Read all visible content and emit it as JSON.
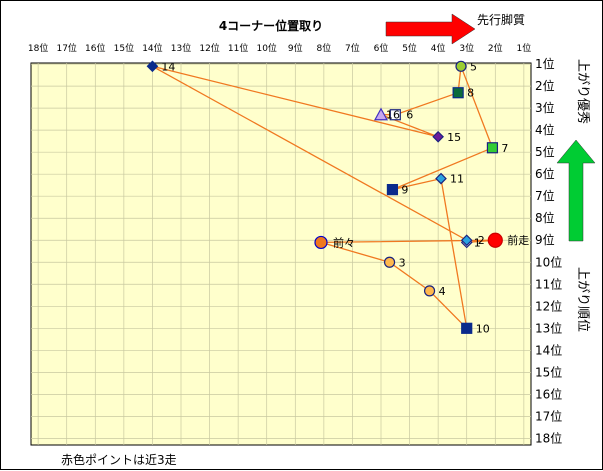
{
  "chart_data": {
    "type": "scatter",
    "title": "4コーナー位置取り",
    "x_ticks": [
      "18位",
      "17位",
      "16位",
      "15位",
      "14位",
      "13位",
      "12位",
      "11位",
      "10位",
      "9位",
      "8位",
      "7位",
      "6位",
      "5位",
      "4位",
      "3位",
      "2位",
      "1位"
    ],
    "y_ticks": [
      "1位",
      "2位",
      "3位",
      "4位",
      "5位",
      "6位",
      "7位",
      "8位",
      "9位",
      "10位",
      "11位",
      "12位",
      "13位",
      "14位",
      "15位",
      "16位",
      "17位",
      "18位"
    ],
    "xlim": [
      18,
      1
    ],
    "ylim": [
      1,
      18
    ],
    "grid": true,
    "arrow_right_label": "先行脚質",
    "arrow_up_label": "上がり優秀",
    "y_side_label": "上がり順位",
    "note": "赤色ポイントは近3走",
    "colors": {
      "plot_bg": "#FFFFCC",
      "grid": "#C8C8A0",
      "line": "#F07820",
      "arrow_red": "#FF0000",
      "arrow_green": "#00CC33"
    },
    "points": [
      {
        "label": "14",
        "x": 14.0,
        "y": 1.1,
        "marker": "diamond",
        "fill": "#0A2A8C",
        "stroke": "#0A2A8C"
      },
      {
        "label": "5",
        "x": 3.2,
        "y": 1.1,
        "marker": "circle",
        "fill": "#9ACD32",
        "stroke": "#1A237E"
      },
      {
        "label": "8",
        "x": 3.3,
        "y": 2.3,
        "marker": "square",
        "fill": "#0B6B3A",
        "stroke": "#0A2A8C"
      },
      {
        "label": "16",
        "x": 6.0,
        "y": 3.3,
        "marker": "triangle",
        "fill": "#C8A8F0",
        "stroke": "#4030C0"
      },
      {
        "label": "6",
        "x": 5.5,
        "y": 3.3,
        "marker": "square",
        "fill": "#FFFFFF",
        "stroke": "#1A237E"
      },
      {
        "label": "15",
        "x": 4.0,
        "y": 4.3,
        "marker": "diamond",
        "fill": "#6A1B9A",
        "stroke": "#1A237E"
      },
      {
        "label": "7",
        "x": 2.1,
        "y": 4.8,
        "marker": "square",
        "fill": "#33CC33",
        "stroke": "#1A237E"
      },
      {
        "label": "11",
        "x": 3.9,
        "y": 6.2,
        "marker": "diamond",
        "fill": "#29A3E0",
        "stroke": "#1A237E"
      },
      {
        "label": "9",
        "x": 5.6,
        "y": 6.7,
        "marker": "square",
        "fill": "#0A2A8C",
        "stroke": "#0A2A8C"
      },
      {
        "label": "前々",
        "x": 8.1,
        "y": 9.1,
        "marker": "circle",
        "fill": "#F07820",
        "stroke": "#0000CC"
      },
      {
        "label": "1",
        "x": 3.0,
        "y": 9.1,
        "marker": "diamond",
        "fill": "#FFFFFF",
        "stroke": "#1A237E"
      },
      {
        "label": "2",
        "x": 3.0,
        "y": 9.0,
        "marker": "diamond",
        "fill": "#29A3E0",
        "stroke": "#1A237E"
      },
      {
        "label": "前走",
        "x": 2.0,
        "y": 9.0,
        "marker": "circle",
        "fill": "#FF0000",
        "stroke": "#CC0000"
      },
      {
        "label": "3",
        "x": 5.7,
        "y": 10.0,
        "marker": "circle",
        "fill": "#FFB84D",
        "stroke": "#1A237E"
      },
      {
        "label": "4",
        "x": 4.3,
        "y": 11.3,
        "marker": "circle",
        "fill": "#FFB84D",
        "stroke": "#1A237E"
      },
      {
        "label": "10",
        "x": 3.0,
        "y": 13.0,
        "marker": "square",
        "fill": "#0A2A8C",
        "stroke": "#0A2A8C"
      }
    ],
    "line_order": [
      "10",
      "4",
      "3",
      "前々",
      "前走",
      "1",
      "2",
      "14",
      "15",
      "16",
      "6",
      "8",
      "5",
      "7",
      "9",
      "11",
      "10"
    ]
  }
}
